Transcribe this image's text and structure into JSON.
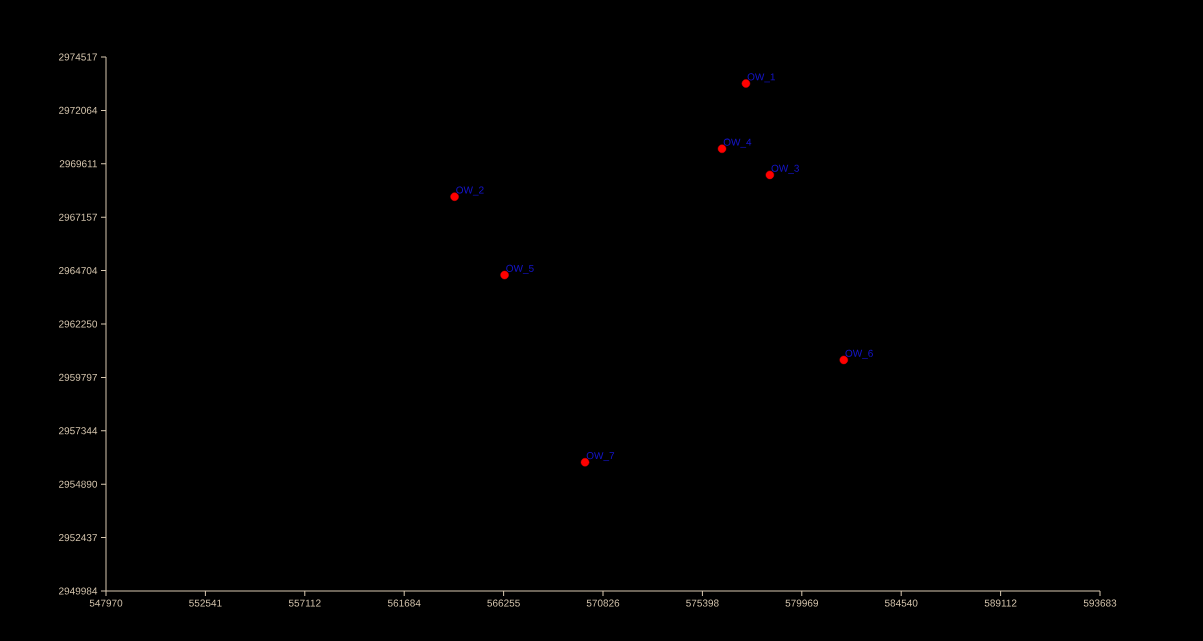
{
  "chart_data": {
    "type": "scatter",
    "marker": "circle",
    "grid": false,
    "x": [
      577400,
      576300,
      578500,
      564000,
      566300,
      581900,
      570000
    ],
    "series": [
      {
        "color": "#ff0000",
        "values": [
          2973300,
          2970300,
          2969100,
          2968100,
          2964500,
          2960600,
          2955900
        ]
      }
    ],
    "annotations": [
      {
        "text": "OW_1",
        "x": 577400,
        "y": 2973300
      },
      {
        "text": "OW_4",
        "x": 576300,
        "y": 2970300
      },
      {
        "text": "OW_3",
        "x": 578500,
        "y": 2969100
      },
      {
        "text": "OW_2",
        "x": 564000,
        "y": 2968100
      },
      {
        "text": "OW_5",
        "x": 566300,
        "y": 2964500
      },
      {
        "text": "OW_6",
        "x": 581900,
        "y": 2960600
      },
      {
        "text": "OW_7",
        "x": 570000,
        "y": 2955900
      }
    ],
    "xlim": [
      547970,
      593683
    ],
    "xticks": [
      547970,
      552541,
      557112,
      561684,
      566255,
      570826,
      575398,
      579969,
      584540,
      589112,
      593683
    ],
    "ylim": [
      2949984,
      2974517
    ],
    "yticks": [
      2949984,
      2952437,
      2954890,
      2957344,
      2959797,
      2962250,
      2964704,
      2967157,
      2969611,
      2972064,
      2974517
    ]
  }
}
